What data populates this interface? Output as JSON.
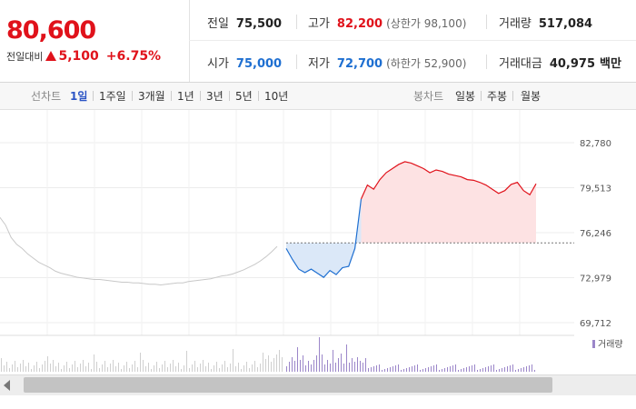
{
  "quote": {
    "price": "80,600",
    "change_label": "전일대비",
    "change": "5,100",
    "change_pct": "+6.75%"
  },
  "stats": {
    "prev_close": {
      "label": "전일",
      "value": "75,500"
    },
    "high": {
      "label": "고가",
      "value": "82,200",
      "sub": "(상한가 98,100)"
    },
    "volume": {
      "label": "거래량",
      "value": "517,084"
    },
    "open": {
      "label": "시가",
      "value": "75,000"
    },
    "low": {
      "label": "저가",
      "value": "72,700",
      "sub": "(하한가 52,900)"
    },
    "trade_value": {
      "label": "거래대금",
      "value": "40,975",
      "unit": "백만"
    }
  },
  "toolbar": {
    "line_chart_label": "선차트",
    "periods": [
      "1일",
      "1주일",
      "3개월",
      "1년",
      "3년",
      "5년",
      "10년"
    ],
    "active_period": "1일",
    "candle_chart_label": "봉차트",
    "candle_periods": [
      "일봉",
      "주봉",
      "월봉"
    ]
  },
  "chart_data": {
    "type": "line",
    "y_ticks": [
      "82,780",
      "79,513",
      "76,246",
      "72,979",
      "69,712"
    ],
    "ylim": [
      69712,
      82780
    ],
    "reference_price": 75500,
    "legend": "거래량",
    "colors": {
      "up": "#e0121b",
      "down": "#1e6fd1",
      "prev_day": "#c8c8c8",
      "volume": "#9b86c9",
      "prev_volume": "#cfcfcf"
    },
    "prev_day_series": [
      77350,
      76800,
      75900,
      75400,
      75100,
      74700,
      74400,
      74100,
      73900,
      73700,
      73450,
      73300,
      73200,
      73100,
      73000,
      72950,
      72900,
      72850,
      72850,
      72800,
      72750,
      72700,
      72650,
      72650,
      72600,
      72600,
      72550,
      72500,
      72500,
      72450,
      72500,
      72550,
      72600,
      72600,
      72700,
      72750,
      72800,
      72850,
      72900,
      73000,
      73100,
      73150,
      73250,
      73400,
      73550,
      73750,
      73950,
      74200,
      74500,
      74850,
      75250
    ],
    "today_series": [
      75100,
      74300,
      73600,
      73350,
      73600,
      73300,
      73000,
      73500,
      73200,
      73700,
      73800,
      75100,
      78700,
      79700,
      79400,
      80100,
      80600,
      80900,
      81200,
      81400,
      81300,
      81100,
      80900,
      80600,
      80800,
      80700,
      80500,
      80400,
      80300,
      80100,
      80050,
      79900,
      79700,
      79400,
      79100,
      79300,
      79750,
      79900,
      79300,
      79000,
      79800
    ]
  }
}
